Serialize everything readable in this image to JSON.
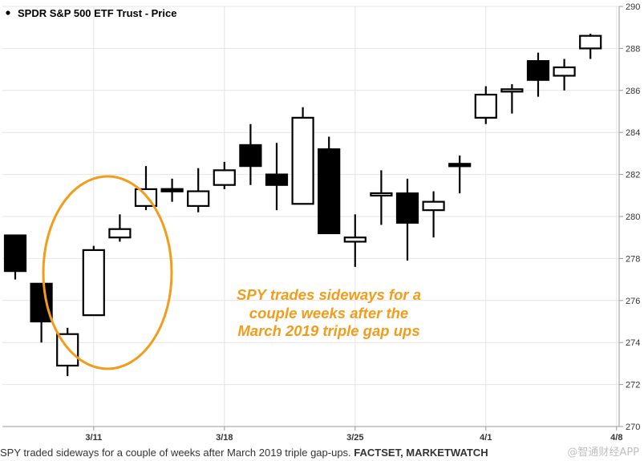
{
  "chart_data": {
    "type": "candlestick",
    "title": "SPDR S&P 500 ETF Trust - Price",
    "ylim": [
      270,
      290
    ],
    "yticks": [
      270,
      272,
      274,
      276,
      278,
      280,
      282,
      284,
      286,
      288,
      290
    ],
    "xticks": [
      {
        "index": 3,
        "label": "3/11"
      },
      {
        "index": 8,
        "label": "3/18"
      },
      {
        "index": 13,
        "label": "3/25"
      },
      {
        "index": 18,
        "label": "4/1"
      },
      {
        "index": 23,
        "label": "4/8"
      }
    ],
    "grid": true,
    "candles": [
      {
        "open": 279.1,
        "close": 277.4,
        "high": 279.1,
        "low": 277.0
      },
      {
        "open": 276.8,
        "close": 275.0,
        "high": 276.8,
        "low": 274.0
      },
      {
        "open": 272.9,
        "close": 274.4,
        "high": 274.7,
        "low": 272.4
      },
      {
        "open": 275.3,
        "close": 278.4,
        "high": 278.6,
        "low": 275.3
      },
      {
        "open": 279.0,
        "close": 279.4,
        "high": 280.1,
        "low": 278.8
      },
      {
        "open": 280.5,
        "close": 281.3,
        "high": 282.4,
        "low": 280.3
      },
      {
        "open": 281.3,
        "close": 281.2,
        "high": 281.8,
        "low": 280.7
      },
      {
        "open": 280.5,
        "close": 281.2,
        "high": 282.3,
        "low": 280.2
      },
      {
        "open": 281.5,
        "close": 282.2,
        "high": 282.6,
        "low": 281.3
      },
      {
        "open": 283.4,
        "close": 282.4,
        "high": 284.4,
        "low": 281.5
      },
      {
        "open": 282.0,
        "close": 281.5,
        "high": 283.5,
        "low": 280.3
      },
      {
        "open": 280.6,
        "close": 284.7,
        "high": 285.2,
        "low": 280.6
      },
      {
        "open": 283.2,
        "close": 279.2,
        "high": 283.8,
        "low": 279.2
      },
      {
        "open": 278.8,
        "close": 279.0,
        "high": 280.1,
        "low": 277.6
      },
      {
        "open": 281.0,
        "close": 281.1,
        "high": 282.2,
        "low": 279.6
      },
      {
        "open": 281.1,
        "close": 279.7,
        "high": 281.8,
        "low": 277.9
      },
      {
        "open": 280.3,
        "close": 280.7,
        "high": 281.2,
        "low": 279.0
      },
      {
        "open": 282.5,
        "close": 282.4,
        "high": 282.9,
        "low": 281.1
      },
      {
        "open": 284.7,
        "close": 285.8,
        "high": 286.2,
        "low": 284.4
      },
      {
        "open": 286.0,
        "close": 286.0,
        "high": 286.3,
        "low": 284.9
      },
      {
        "open": 287.4,
        "close": 286.5,
        "high": 287.8,
        "low": 285.7
      },
      {
        "open": 286.7,
        "close": 287.1,
        "high": 287.5,
        "low": 286.0
      },
      {
        "open": 288.0,
        "close": 288.6,
        "high": 288.7,
        "low": 287.5
      }
    ],
    "annotation": {
      "lines": [
        "SPY trades sideways for a",
        "couple weeks after the",
        "March 2019 triple gap ups"
      ],
      "color": "#f39c1a"
    }
  },
  "caption": {
    "text": "SPY traded sideways for a couple of weeks after March 2019 triple gap-ups. ",
    "source": "FACTSET, MARKETWATCH"
  },
  "watermark": "@智通财经APP",
  "colors": {
    "bearish": "#000000",
    "bullish": "#ffffff",
    "grid": "#e4e4e4",
    "highlight": "#f39c1a"
  }
}
